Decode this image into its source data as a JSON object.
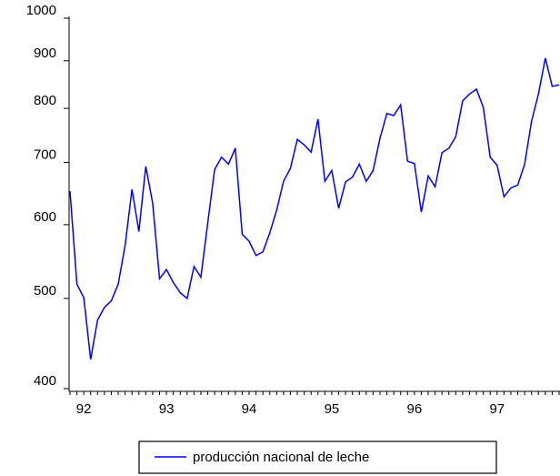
{
  "chart_data": {
    "type": "line",
    "categories": [
      null,
      null,
      "92",
      null,
      null,
      null,
      null,
      null,
      null,
      null,
      null,
      null,
      null,
      null,
      "93",
      null,
      null,
      null,
      null,
      null,
      null,
      null,
      null,
      null,
      null,
      null,
      "94",
      null,
      null,
      null,
      null,
      null,
      null,
      null,
      null,
      null,
      null,
      null,
      "95",
      null,
      null,
      null,
      null,
      null,
      null,
      null,
      null,
      null,
      null,
      null,
      "96",
      null,
      null,
      null,
      null,
      null,
      null,
      null,
      null,
      null,
      null,
      null,
      "97",
      null,
      null,
      null,
      null,
      null,
      null,
      null,
      null,
      null
    ],
    "series": [
      {
        "name": "producción nacional de leche",
        "color": "#0000ff",
        "values": [
          652,
          518,
          501,
          430,
          474,
          489,
          497,
          518,
          570,
          655,
          590,
          693,
          633,
          525,
          537,
          520,
          507,
          500,
          541,
          527,
          603,
          688,
          709,
          697,
          725,
          586,
          576,
          556,
          561,
          588,
          622,
          668,
          690,
          741,
          731,
          718,
          779,
          668,
          686,
          625,
          667,
          675,
          697,
          668,
          686,
          743,
          790,
          786,
          807,
          702,
          698,
          619,
          677,
          659,
          717,
          725,
          746,
          815,
          829,
          839,
          802,
          709,
          695,
          643,
          657,
          662,
          697,
          775,
          829,
          906,
          845,
          848
        ]
      }
    ],
    "ylim": [
      400,
      1000
    ],
    "yticks": [
      400,
      500,
      600,
      700,
      800,
      900,
      1000
    ],
    "log_y": true,
    "legend": "bottom"
  }
}
